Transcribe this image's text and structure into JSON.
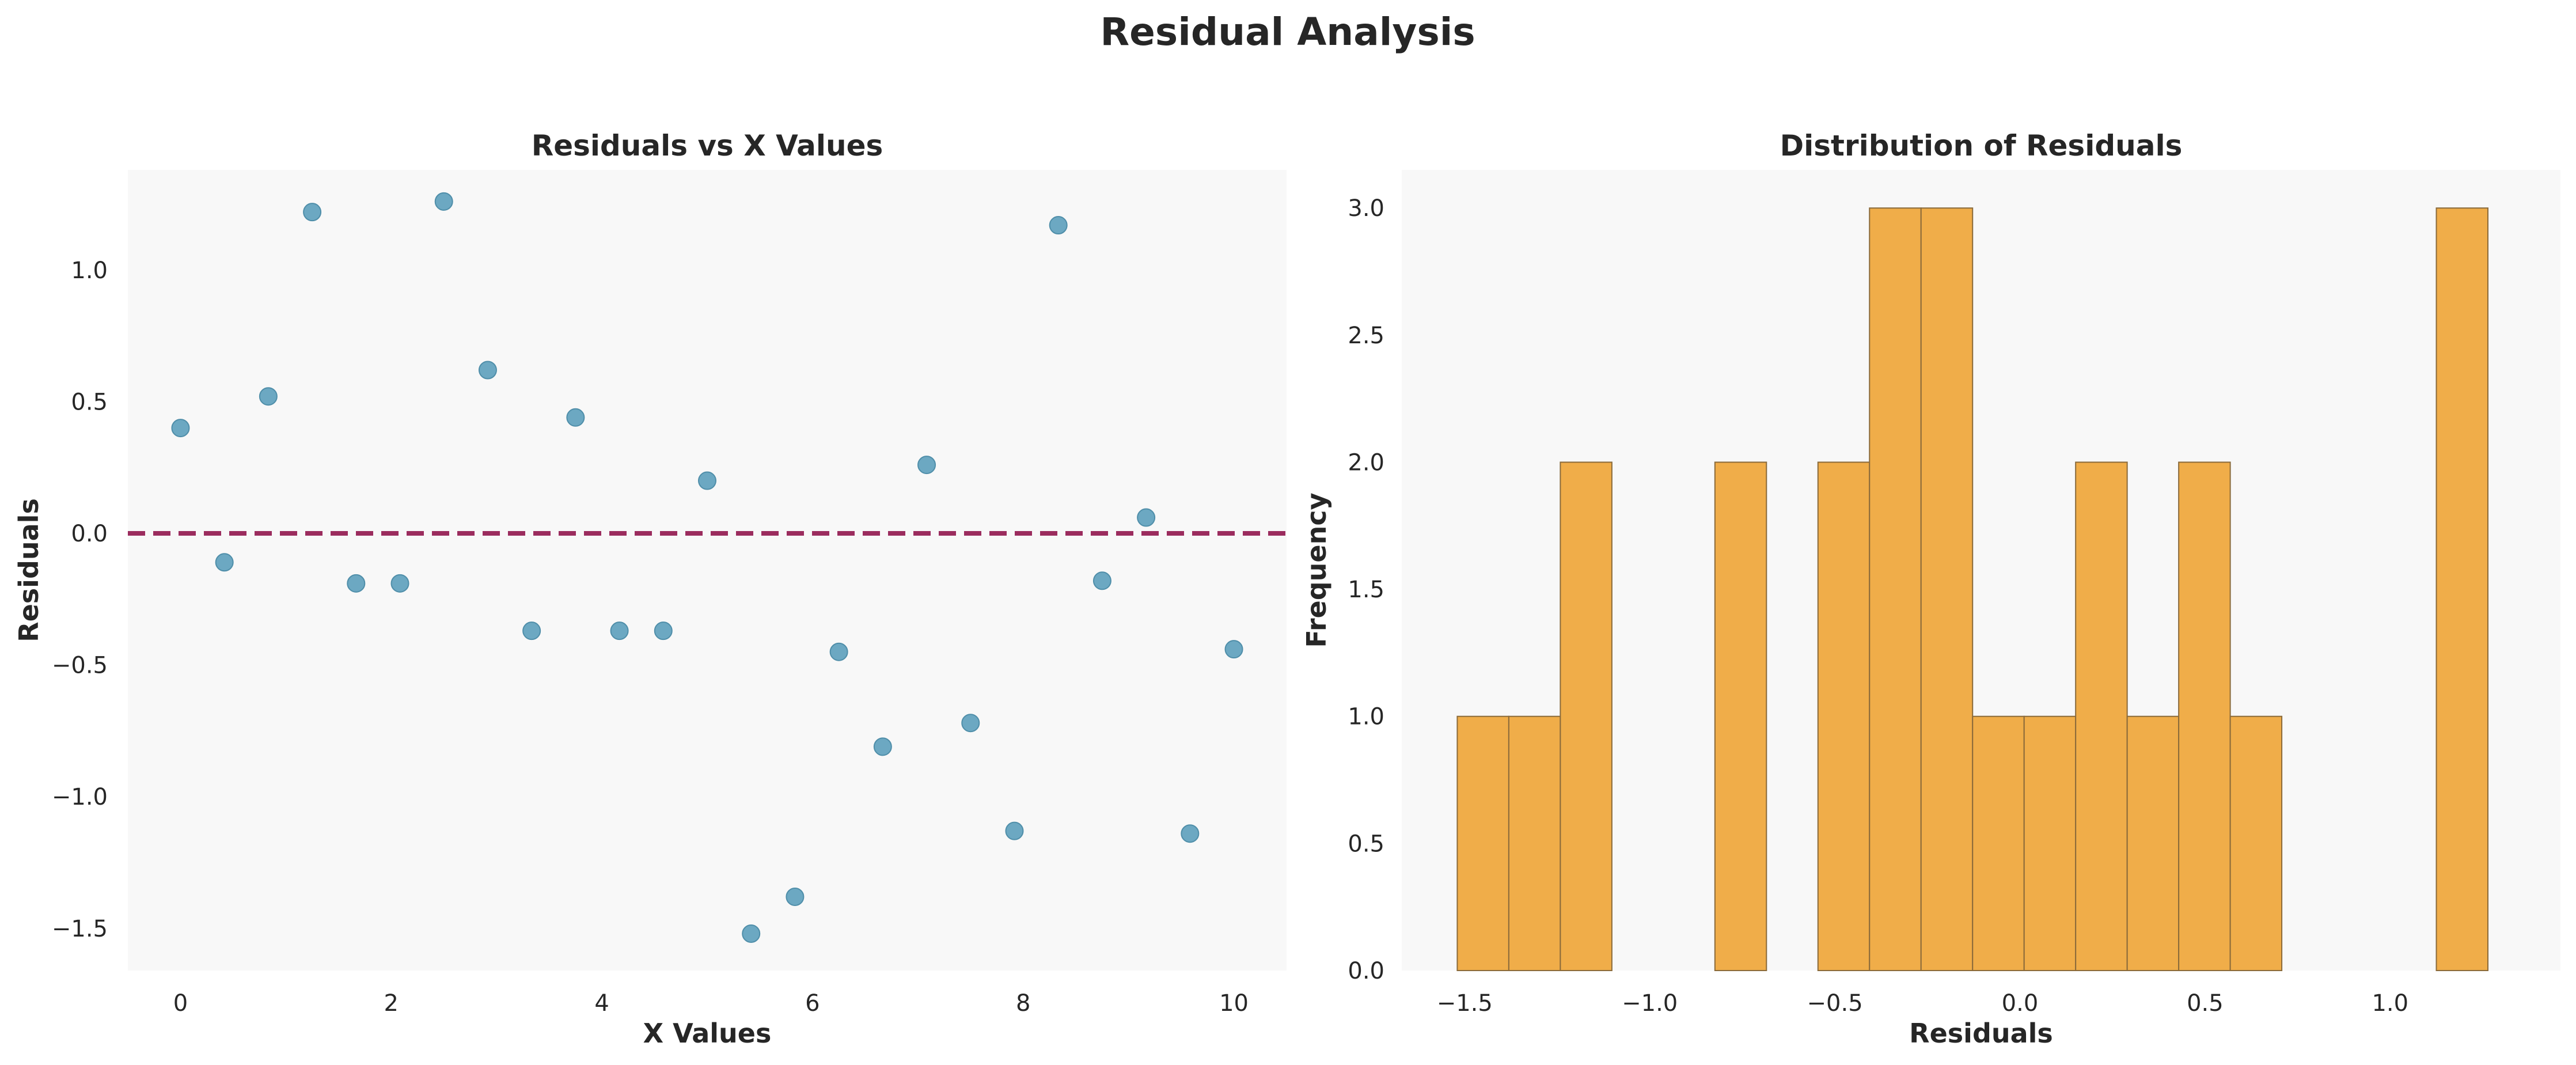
{
  "figure": {
    "title": "Residual Analysis",
    "colors": {
      "background": "#ffffff",
      "panel": "#f8f8f8",
      "text": "#262626",
      "scatter": "#5fa1bd",
      "scatter_edge": "#4f8ea9",
      "zero_line": "#9b2c5e",
      "bar": "#f0ad49",
      "bar_edge": "#8a6a3a"
    }
  },
  "chart_data": [
    {
      "type": "scatter",
      "title": "Residuals vs X Values",
      "xlabel": "X Values",
      "ylabel": "Residuals",
      "xlim": [
        -0.5,
        10.5
      ],
      "ylim": [
        -1.66,
        1.38
      ],
      "xticks": [
        0,
        2,
        4,
        6,
        8,
        10
      ],
      "xtick_labels": [
        "0",
        "2",
        "4",
        "6",
        "8",
        "10"
      ],
      "yticks": [
        -1.5,
        -1.0,
        -0.5,
        0.0,
        0.5,
        1.0
      ],
      "ytick_labels": [
        "−1.5",
        "−1.0",
        "−0.5",
        "0.0",
        "0.5",
        "1.0"
      ],
      "grid": false,
      "reference_line": {
        "y": 0.0,
        "style": "dashed"
      },
      "x": [
        0.0,
        0.4167,
        0.8333,
        1.25,
        1.6667,
        2.0833,
        2.5,
        2.9167,
        3.3333,
        3.75,
        4.1667,
        4.5833,
        5.0,
        5.4167,
        5.8333,
        6.25,
        6.6667,
        7.0833,
        7.5,
        7.9167,
        8.3333,
        8.75,
        9.1667,
        9.5833,
        10.0
      ],
      "y": [
        0.4,
        -0.11,
        0.52,
        1.22,
        -0.19,
        -0.19,
        1.26,
        0.62,
        -0.37,
        0.44,
        -0.37,
        -0.37,
        0.2,
        -1.52,
        -1.38,
        -0.45,
        -0.81,
        0.26,
        -0.72,
        -1.13,
        1.17,
        -0.18,
        0.06,
        -1.14,
        -0.44
      ]
    },
    {
      "type": "bar",
      "subtype": "histogram",
      "title": "Distribution of Residuals",
      "xlabel": "Residuals",
      "ylabel": "Frequency",
      "xlim": [
        -1.67,
        1.46
      ],
      "ylim": [
        0,
        3.15
      ],
      "xticks": [
        -1.5,
        -1.0,
        -0.5,
        0.0,
        0.5,
        1.0
      ],
      "xtick_labels": [
        "−1.5",
        "−1.0",
        "−0.5",
        "0.0",
        "0.5",
        "1.0"
      ],
      "yticks": [
        0.0,
        0.5,
        1.0,
        1.5,
        2.0,
        2.5,
        3.0
      ],
      "ytick_labels": [
        "0.0",
        "0.5",
        "1.0",
        "1.5",
        "2.0",
        "2.5",
        "3.0"
      ],
      "grid": false,
      "bin_start": -1.52,
      "bin_width": 0.1392,
      "values": [
        1,
        1,
        2,
        0,
        0,
        2,
        0,
        2,
        3,
        3,
        1,
        1,
        2,
        1,
        2,
        1,
        0,
        0,
        0,
        3
      ]
    }
  ]
}
